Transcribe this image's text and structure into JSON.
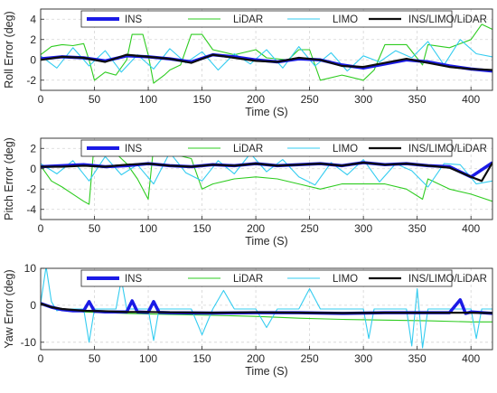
{
  "colors": {
    "ins": "#1a1ae6",
    "lidar": "#2ecc20",
    "limo": "#33ccf0",
    "fused": "#0d0d0d",
    "grid": "#d4d4d4",
    "axis": "#262626"
  },
  "chart_data": [
    {
      "type": "line",
      "xlabel": "Time (S)",
      "ylabel": "Roll Error (deg)",
      "xlim": [
        0,
        420
      ],
      "ylim": [
        -3,
        5
      ],
      "xticks": [
        0,
        50,
        100,
        150,
        200,
        250,
        300,
        350,
        400
      ],
      "yticks": [
        -2,
        0,
        2,
        4
      ],
      "grid": "dashed",
      "legend": "top, horizontal",
      "series": [
        {
          "name": "INS",
          "x": [
            0,
            20,
            40,
            60,
            80,
            100,
            120,
            140,
            160,
            180,
            200,
            220,
            240,
            260,
            280,
            300,
            320,
            340,
            360,
            380,
            400,
            420
          ],
          "y": [
            0.1,
            0.3,
            0.2,
            -0.1,
            0.4,
            0.3,
            0.1,
            -0.2,
            0.5,
            0.3,
            0.0,
            -0.2,
            0.1,
            0.0,
            -0.5,
            -0.8,
            -0.4,
            0.0,
            -0.2,
            -0.6,
            -0.9,
            -1.1
          ]
        },
        {
          "name": "LiDAR",
          "x": [
            0,
            10,
            20,
            30,
            40,
            45,
            50,
            60,
            70,
            80,
            85,
            95,
            100,
            105,
            115,
            120,
            130,
            140,
            150,
            160,
            180,
            200,
            210,
            230,
            240,
            250,
            260,
            280,
            300,
            310,
            320,
            340,
            355,
            360,
            380,
            400,
            410,
            420
          ],
          "y": [
            0.5,
            1.3,
            1.5,
            1.4,
            1.6,
            0.0,
            -2.0,
            -1.2,
            -1.5,
            0.0,
            2.5,
            2.5,
            0.5,
            -2.3,
            -1.5,
            -1.0,
            -0.5,
            2.5,
            2.5,
            1.0,
            0.5,
            1.0,
            0.2,
            0.0,
            1.0,
            1.0,
            -2.0,
            -1.5,
            -2.0,
            -1.0,
            1.5,
            1.5,
            -0.5,
            1.5,
            1.2,
            2.0,
            3.5,
            3.0
          ]
        },
        {
          "name": "LIMO",
          "x": [
            0,
            15,
            30,
            45,
            60,
            75,
            90,
            105,
            120,
            135,
            150,
            165,
            180,
            195,
            210,
            225,
            240,
            255,
            270,
            285,
            300,
            315,
            330,
            345,
            360,
            375,
            390,
            405,
            420
          ],
          "y": [
            0.4,
            -0.8,
            1.2,
            -0.6,
            0.9,
            -1.2,
            0.5,
            -0.9,
            1.1,
            -0.3,
            0.8,
            -1.0,
            0.6,
            -0.4,
            1.0,
            -0.8,
            1.3,
            -0.6,
            0.7,
            -1.1,
            0.4,
            -0.2,
            0.9,
            0.2,
            1.8,
            -0.5,
            2.0,
            0.6,
            0.3
          ]
        },
        {
          "name": "INS/LIMO/LiDAR",
          "x": [
            0,
            20,
            40,
            60,
            80,
            100,
            120,
            140,
            160,
            180,
            200,
            220,
            240,
            260,
            280,
            300,
            320,
            340,
            360,
            380,
            400,
            420
          ],
          "y": [
            0.0,
            0.3,
            0.2,
            -0.2,
            0.5,
            0.3,
            0.1,
            -0.3,
            0.5,
            0.2,
            -0.1,
            -0.2,
            0.2,
            0.0,
            -0.6,
            -0.7,
            -0.3,
            0.1,
            -0.3,
            -0.7,
            -0.9,
            -1.0
          ]
        }
      ]
    },
    {
      "type": "line",
      "xlabel": "Time (S)",
      "ylabel": "Pitch Error (deg)",
      "xlim": [
        0,
        420
      ],
      "ylim": [
        -5,
        3
      ],
      "xticks": [
        0,
        50,
        100,
        150,
        200,
        250,
        300,
        350,
        400
      ],
      "yticks": [
        -4,
        -2,
        0,
        2
      ],
      "grid": "dashed",
      "legend": "top, horizontal",
      "series": [
        {
          "name": "INS",
          "x": [
            0,
            20,
            40,
            60,
            80,
            100,
            120,
            140,
            160,
            180,
            200,
            220,
            240,
            260,
            280,
            300,
            320,
            340,
            360,
            380,
            400,
            420
          ],
          "y": [
            0.2,
            0.3,
            0.4,
            0.2,
            0.3,
            0.5,
            0.3,
            0.2,
            0.4,
            0.3,
            0.5,
            0.3,
            0.4,
            0.5,
            0.3,
            0.6,
            0.4,
            0.5,
            0.3,
            0.2,
            -0.8,
            0.6
          ]
        },
        {
          "name": "LiDAR",
          "x": [
            0,
            10,
            20,
            30,
            40,
            45,
            50,
            60,
            70,
            80,
            90,
            100,
            105,
            110,
            120,
            140,
            150,
            160,
            180,
            200,
            220,
            240,
            260,
            280,
            300,
            320,
            340,
            355,
            360,
            380,
            400,
            420
          ],
          "y": [
            0.3,
            -1.2,
            -1.8,
            -2.5,
            -3.2,
            -3.5,
            2.8,
            2.0,
            1.5,
            0.5,
            -1.0,
            -3.0,
            2.2,
            2.0,
            1.5,
            1.0,
            -2.0,
            -1.5,
            -1.0,
            -0.8,
            -1.0,
            -1.5,
            -2.0,
            -1.5,
            -1.5,
            -1.5,
            -2.0,
            -3.0,
            -1.0,
            -2.0,
            -2.5,
            -3.2
          ]
        },
        {
          "name": "LIMO",
          "x": [
            0,
            15,
            30,
            45,
            60,
            75,
            90,
            105,
            120,
            135,
            150,
            165,
            180,
            195,
            210,
            225,
            240,
            255,
            270,
            285,
            300,
            315,
            330,
            345,
            360,
            375,
            390,
            405,
            420
          ],
          "y": [
            0.5,
            -0.5,
            0.8,
            -1.2,
            1.2,
            -0.6,
            0.4,
            -1.5,
            1.6,
            -0.4,
            -1.2,
            0.8,
            -0.5,
            1.5,
            -0.3,
            0.9,
            -0.8,
            -1.6,
            0.6,
            -0.6,
            0.9,
            -1.3,
            0.5,
            -0.2,
            -1.8,
            0.5,
            0.4,
            -1.5,
            -1.2
          ]
        },
        {
          "name": "INS/LIMO/LiDAR",
          "x": [
            0,
            20,
            40,
            60,
            80,
            100,
            120,
            140,
            160,
            180,
            200,
            220,
            240,
            260,
            280,
            300,
            320,
            340,
            360,
            380,
            400,
            410,
            420
          ],
          "y": [
            0.2,
            0.2,
            0.3,
            0.2,
            0.4,
            0.5,
            0.3,
            0.2,
            0.4,
            0.3,
            0.5,
            0.3,
            0.4,
            0.5,
            0.3,
            0.6,
            0.4,
            0.5,
            0.3,
            0.1,
            -0.8,
            -1.2,
            0.6
          ]
        }
      ]
    },
    {
      "type": "line",
      "xlabel": "Time (S)",
      "ylabel": "Yaw Error (deg)",
      "xlim": [
        0,
        420
      ],
      "ylim": [
        -12,
        10
      ],
      "xticks": [
        0,
        50,
        100,
        150,
        200,
        250,
        300,
        350,
        400
      ],
      "yticks": [
        -10,
        0,
        10
      ],
      "grid": "dashed",
      "legend": "top, horizontal",
      "series": [
        {
          "name": "INS",
          "x": [
            0,
            10,
            20,
            30,
            40,
            45,
            50,
            60,
            80,
            85,
            90,
            100,
            105,
            110,
            120,
            160,
            200,
            240,
            280,
            320,
            360,
            380,
            390,
            395,
            400,
            420
          ],
          "y": [
            0.5,
            -0.5,
            -1.2,
            -1.5,
            -1.5,
            1.0,
            -1.6,
            -1.8,
            -1.8,
            1.2,
            -1.8,
            -1.9,
            1.0,
            -1.9,
            -2.0,
            -2.1,
            -2.0,
            -2.0,
            -2.2,
            -2.0,
            -2.0,
            -2.0,
            1.5,
            -2.2,
            -1.8,
            -2.2
          ]
        },
        {
          "name": "LiDAR",
          "x": [
            0,
            20,
            40,
            80,
            120,
            160,
            200,
            240,
            280,
            320,
            360,
            400,
            420
          ],
          "y": [
            0.5,
            -1.0,
            -1.8,
            -2.2,
            -2.5,
            -2.7,
            -3.0,
            -3.5,
            -3.8,
            -4.0,
            -4.2,
            -4.5,
            -4.5
          ]
        },
        {
          "name": "LIMO",
          "x": [
            0,
            5,
            10,
            15,
            20,
            40,
            45,
            50,
            60,
            70,
            75,
            80,
            100,
            105,
            110,
            120,
            140,
            150,
            160,
            170,
            180,
            200,
            210,
            220,
            240,
            250,
            260,
            280,
            300,
            305,
            310,
            320,
            340,
            345,
            350,
            355,
            360,
            380,
            400,
            405,
            410,
            420
          ],
          "y": [
            0.5,
            10.5,
            1.0,
            -1.5,
            -1.0,
            -1.0,
            -10.0,
            -1.0,
            -1.0,
            -1.0,
            7.0,
            -1.0,
            -1.0,
            -9.5,
            -1.0,
            -1.0,
            -1.0,
            -8.0,
            -1.0,
            4.0,
            -1.0,
            -1.0,
            -6.0,
            -1.0,
            -1.0,
            4.5,
            -1.0,
            -1.0,
            -1.0,
            -9.0,
            -1.0,
            -1.0,
            -1.0,
            -11.0,
            4.5,
            -11.5,
            -1.0,
            -1.0,
            -1.0,
            -9.0,
            -1.0,
            -1.0
          ]
        },
        {
          "name": "INS/LIMO/LiDAR",
          "x": [
            0,
            10,
            20,
            40,
            60,
            80,
            100,
            120,
            160,
            200,
            240,
            280,
            320,
            360,
            400,
            420
          ],
          "y": [
            0.5,
            -0.5,
            -1.0,
            -1.5,
            -1.6,
            -1.8,
            -1.8,
            -1.9,
            -2.0,
            -1.9,
            -2.0,
            -2.1,
            -2.0,
            -2.0,
            -2.0,
            -2.1
          ]
        }
      ]
    }
  ]
}
